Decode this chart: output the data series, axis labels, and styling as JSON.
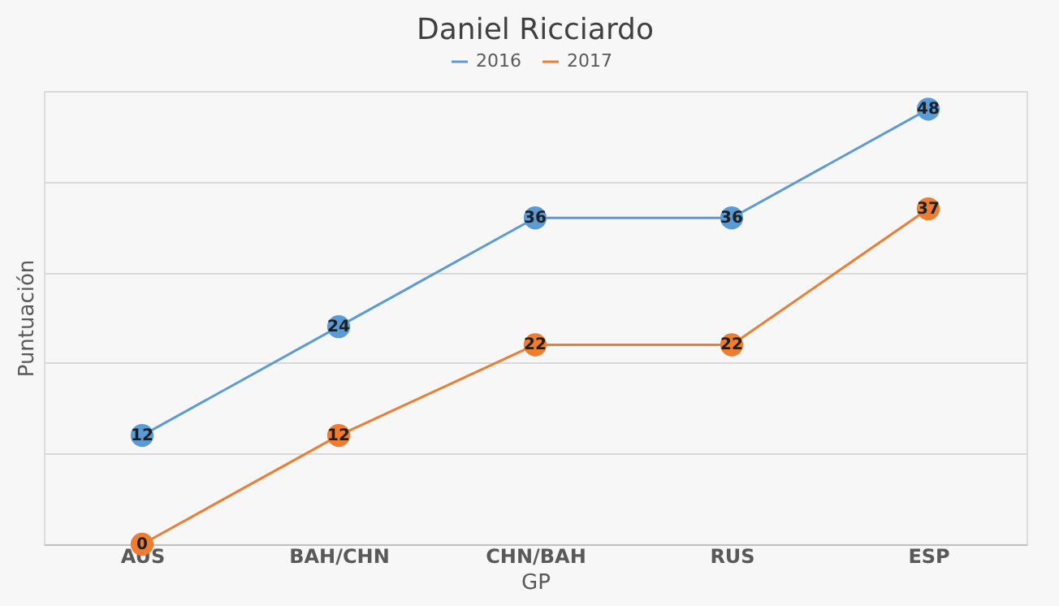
{
  "chart_data": {
    "type": "line",
    "title": "Daniel Ricciardo",
    "xlabel": "GP",
    "ylabel": "Puntuación",
    "categories": [
      "AUS",
      "BAH/CHN",
      "CHN/BAH",
      "RUS",
      "ESP"
    ],
    "series": [
      {
        "name": "2016",
        "color": "#5b9bd5",
        "values": [
          12,
          24,
          36,
          36,
          48
        ]
      },
      {
        "name": "2017",
        "color": "#ed7d31",
        "values": [
          0,
          12,
          22,
          22,
          37
        ]
      }
    ],
    "ylim": [
      0,
      50
    ],
    "yticks": [
      {
        "value": 0,
        "label": null
      },
      {
        "value": 10,
        "label": null
      },
      {
        "value": 20,
        "label": null
      },
      {
        "value": 30,
        "label": null
      },
      {
        "value": 40,
        "label": null
      },
      {
        "value": 50,
        "label": null
      }
    ],
    "tick_labels": "x",
    "grid": "y",
    "legend": "top",
    "marker": "circle",
    "line_style": "solid",
    "data_labels": true
  }
}
